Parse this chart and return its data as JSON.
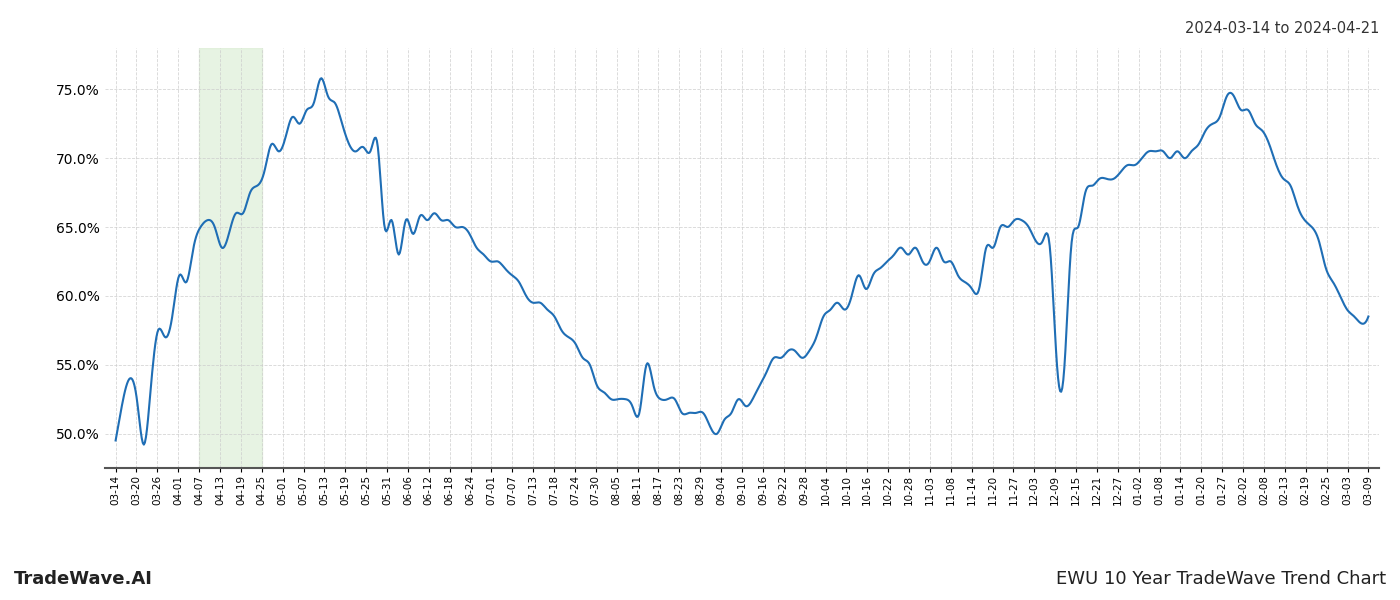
{
  "title_top_right": "2024-03-14 to 2024-04-21",
  "title_bottom_left": "TradeWave.AI",
  "title_bottom_right": "EWU 10 Year TradeWave Trend Chart",
  "line_color": "#1f6eb5",
  "line_width": 1.5,
  "background_color": "#ffffff",
  "grid_color": "#cccccc",
  "highlight_color": "#d4eacc",
  "highlight_alpha": 0.55,
  "ylim": [
    47.5,
    78.0
  ],
  "yticks": [
    50.0,
    55.0,
    60.0,
    65.0,
    70.0,
    75.0
  ],
  "x_labels": [
    "03-14",
    "03-20",
    "03-26",
    "04-01",
    "04-07",
    "04-13",
    "04-19",
    "04-25",
    "05-01",
    "05-07",
    "05-13",
    "05-19",
    "05-25",
    "05-31",
    "06-06",
    "06-12",
    "06-18",
    "06-24",
    "07-01",
    "07-07",
    "07-13",
    "07-18",
    "07-24",
    "07-30",
    "08-05",
    "08-11",
    "08-17",
    "08-23",
    "08-29",
    "09-04",
    "09-10",
    "09-16",
    "09-22",
    "09-28",
    "10-04",
    "10-10",
    "10-16",
    "10-22",
    "10-28",
    "11-03",
    "11-08",
    "11-14",
    "11-20",
    "11-27",
    "12-03",
    "12-09",
    "12-15",
    "12-21",
    "12-27",
    "01-02",
    "01-08",
    "01-14",
    "01-20",
    "01-27",
    "02-02",
    "02-08",
    "02-13",
    "02-19",
    "02-25",
    "03-03",
    "03-09"
  ],
  "highlight_start_label": "04-07",
  "highlight_end_label": "04-25",
  "control_points": [
    [
      0,
      49.5
    ],
    [
      2,
      54.0
    ],
    [
      3,
      52.5
    ],
    [
      4,
      49.2
    ],
    [
      5,
      53.5
    ],
    [
      6,
      57.5
    ],
    [
      7,
      57.0
    ],
    [
      8,
      58.5
    ],
    [
      9,
      61.5
    ],
    [
      10,
      61.0
    ],
    [
      11,
      63.5
    ],
    [
      12,
      65.0
    ],
    [
      13,
      65.5
    ],
    [
      14,
      65.0
    ],
    [
      15,
      63.5
    ],
    [
      16,
      64.5
    ],
    [
      17,
      66.0
    ],
    [
      18,
      66.0
    ],
    [
      19,
      67.5
    ],
    [
      20,
      68.0
    ],
    [
      21,
      69.0
    ],
    [
      22,
      71.0
    ],
    [
      23,
      70.5
    ],
    [
      24,
      71.5
    ],
    [
      25,
      73.0
    ],
    [
      26,
      72.5
    ],
    [
      27,
      73.5
    ],
    [
      28,
      74.0
    ],
    [
      29,
      75.8
    ],
    [
      30,
      74.5
    ],
    [
      31,
      74.0
    ],
    [
      32,
      72.5
    ],
    [
      33,
      71.0
    ],
    [
      34,
      70.5
    ],
    [
      35,
      70.8
    ],
    [
      36,
      70.5
    ],
    [
      37,
      71.0
    ],
    [
      38,
      65.0
    ],
    [
      39,
      65.5
    ],
    [
      40,
      63.0
    ],
    [
      41,
      65.5
    ],
    [
      42,
      64.5
    ],
    [
      43,
      65.8
    ],
    [
      44,
      65.5
    ],
    [
      45,
      66.0
    ],
    [
      46,
      65.5
    ],
    [
      47,
      65.5
    ],
    [
      48,
      65.0
    ],
    [
      49,
      65.0
    ],
    [
      50,
      64.5
    ],
    [
      51,
      63.5
    ],
    [
      52,
      63.0
    ],
    [
      53,
      62.5
    ],
    [
      54,
      62.5
    ],
    [
      55,
      62.0
    ],
    [
      56,
      61.5
    ],
    [
      57,
      61.0
    ],
    [
      58,
      60.0
    ],
    [
      59,
      59.5
    ],
    [
      60,
      59.5
    ],
    [
      61,
      59.0
    ],
    [
      62,
      58.5
    ],
    [
      63,
      57.5
    ],
    [
      64,
      57.0
    ],
    [
      65,
      56.5
    ],
    [
      66,
      55.5
    ],
    [
      67,
      55.0
    ],
    [
      68,
      53.5
    ],
    [
      69,
      53.0
    ],
    [
      70,
      52.5
    ],
    [
      71,
      52.5
    ],
    [
      72,
      52.5
    ],
    [
      73,
      52.0
    ],
    [
      74,
      51.5
    ],
    [
      75,
      55.0
    ],
    [
      76,
      53.5
    ],
    [
      77,
      52.5
    ],
    [
      78,
      52.5
    ],
    [
      79,
      52.5
    ],
    [
      80,
      51.5
    ],
    [
      81,
      51.5
    ],
    [
      82,
      51.5
    ],
    [
      83,
      51.5
    ],
    [
      84,
      50.5
    ],
    [
      85,
      50.0
    ],
    [
      86,
      51.0
    ],
    [
      87,
      51.5
    ],
    [
      88,
      52.5
    ],
    [
      89,
      52.0
    ],
    [
      90,
      52.5
    ],
    [
      91,
      53.5
    ],
    [
      92,
      54.5
    ],
    [
      93,
      55.5
    ],
    [
      94,
      55.5
    ],
    [
      95,
      56.0
    ],
    [
      96,
      56.0
    ],
    [
      97,
      55.5
    ],
    [
      98,
      56.0
    ],
    [
      99,
      57.0
    ],
    [
      100,
      58.5
    ],
    [
      101,
      59.0
    ],
    [
      102,
      59.5
    ],
    [
      103,
      59.0
    ],
    [
      104,
      60.0
    ],
    [
      105,
      61.5
    ],
    [
      106,
      60.5
    ],
    [
      107,
      61.5
    ],
    [
      108,
      62.0
    ],
    [
      109,
      62.5
    ],
    [
      110,
      63.0
    ],
    [
      111,
      63.5
    ],
    [
      112,
      63.0
    ],
    [
      113,
      63.5
    ],
    [
      114,
      62.5
    ],
    [
      115,
      62.5
    ],
    [
      116,
      63.5
    ],
    [
      117,
      62.5
    ],
    [
      118,
      62.5
    ],
    [
      119,
      61.5
    ],
    [
      120,
      61.0
    ],
    [
      121,
      60.5
    ],
    [
      122,
      60.5
    ],
    [
      123,
      63.5
    ],
    [
      124,
      63.5
    ],
    [
      125,
      65.0
    ],
    [
      126,
      65.0
    ],
    [
      127,
      65.5
    ],
    [
      128,
      65.5
    ],
    [
      129,
      65.0
    ],
    [
      130,
      64.0
    ],
    [
      131,
      64.0
    ],
    [
      132,
      63.5
    ],
    [
      133,
      55.0
    ],
    [
      134,
      54.5
    ],
    [
      135,
      63.5
    ],
    [
      136,
      65.0
    ],
    [
      137,
      67.5
    ],
    [
      138,
      68.0
    ],
    [
      139,
      68.5
    ],
    [
      140,
      68.5
    ],
    [
      141,
      68.5
    ],
    [
      142,
      69.0
    ],
    [
      143,
      69.5
    ],
    [
      144,
      69.5
    ],
    [
      145,
      70.0
    ],
    [
      146,
      70.5
    ],
    [
      147,
      70.5
    ],
    [
      148,
      70.5
    ],
    [
      149,
      70.0
    ],
    [
      150,
      70.5
    ],
    [
      151,
      70.0
    ],
    [
      152,
      70.5
    ],
    [
      153,
      71.0
    ],
    [
      154,
      72.0
    ],
    [
      155,
      72.5
    ],
    [
      156,
      73.0
    ],
    [
      157,
      74.5
    ],
    [
      158,
      74.5
    ],
    [
      159,
      73.5
    ],
    [
      160,
      73.5
    ],
    [
      161,
      72.5
    ],
    [
      162,
      72.0
    ],
    [
      163,
      71.0
    ],
    [
      164,
      69.5
    ],
    [
      165,
      68.5
    ],
    [
      166,
      68.0
    ],
    [
      167,
      66.5
    ],
    [
      168,
      65.5
    ],
    [
      169,
      65.0
    ],
    [
      170,
      64.0
    ],
    [
      171,
      62.0
    ],
    [
      172,
      61.0
    ],
    [
      173,
      60.0
    ],
    [
      174,
      59.0
    ],
    [
      175,
      58.5
    ],
    [
      176,
      58.0
    ],
    [
      177,
      58.5
    ]
  ]
}
